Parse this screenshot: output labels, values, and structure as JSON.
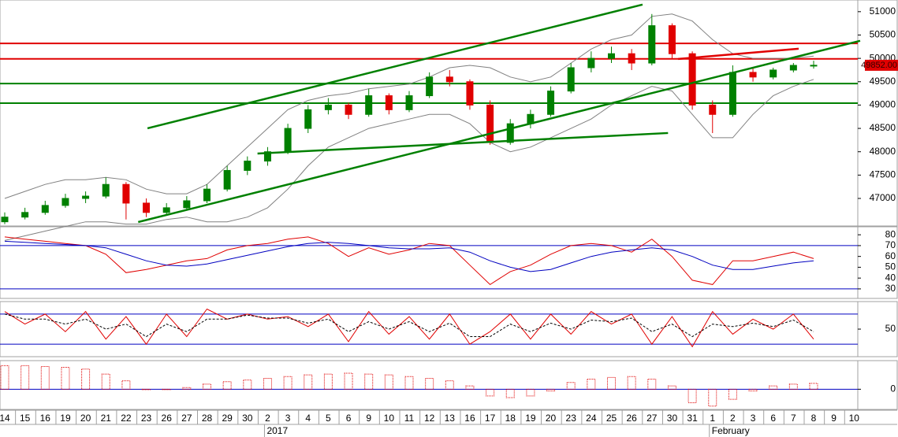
{
  "chart_data": {
    "type": "candlestick",
    "categories": [
      "14",
      "15",
      "16",
      "19",
      "20",
      "21",
      "22",
      "23",
      "26",
      "27",
      "28",
      "29",
      "30",
      "2",
      "3",
      "4",
      "5",
      "6",
      "9",
      "10",
      "11",
      "12",
      "13",
      "16",
      "17",
      "18",
      "19",
      "20",
      "23",
      "24",
      "25",
      "26",
      "27",
      "30",
      "31",
      "1",
      "2",
      "3",
      "6",
      "7",
      "8",
      "9",
      "10"
    ],
    "periods": [
      null,
      null,
      null,
      null,
      null,
      null,
      null,
      null,
      null,
      null,
      null,
      null,
      null,
      "2017",
      null,
      null,
      null,
      null,
      null,
      null,
      null,
      null,
      null,
      null,
      null,
      null,
      null,
      null,
      null,
      null,
      null,
      null,
      null,
      null,
      null,
      "February",
      null,
      null,
      null,
      null,
      null,
      null,
      null
    ],
    "ohlc": [
      [
        46500,
        46700,
        46450,
        46600
      ],
      [
        46600,
        46800,
        46550,
        46700
      ],
      [
        46700,
        46950,
        46650,
        46850
      ],
      [
        46850,
        47100,
        46800,
        47000
      ],
      [
        47000,
        47150,
        46900,
        47050
      ],
      [
        47050,
        47450,
        47000,
        47300
      ],
      [
        47300,
        47350,
        46550,
        46900
      ],
      [
        46900,
        47000,
        46600,
        46700
      ],
      [
        46700,
        46900,
        46650,
        46800
      ],
      [
        46800,
        47050,
        46750,
        46950
      ],
      [
        46950,
        47300,
        46900,
        47200
      ],
      [
        47200,
        47700,
        47150,
        47600
      ],
      [
        47600,
        47900,
        47500,
        47800
      ],
      [
        47800,
        48100,
        47700,
        48000
      ],
      [
        48000,
        48600,
        47950,
        48500
      ],
      [
        48500,
        49000,
        48400,
        48900
      ],
      [
        48900,
        49150,
        48800,
        49000
      ],
      [
        49000,
        49050,
        48700,
        48800
      ],
      [
        48800,
        49350,
        48750,
        49200
      ],
      [
        49200,
        49250,
        48800,
        48900
      ],
      [
        48900,
        49300,
        48850,
        49200
      ],
      [
        49200,
        49700,
        49150,
        49600
      ],
      [
        49600,
        49750,
        49400,
        49500
      ],
      [
        49500,
        49550,
        48900,
        49000
      ],
      [
        49000,
        49100,
        48150,
        48200
      ],
      [
        48200,
        48700,
        48150,
        48600
      ],
      [
        48600,
        48900,
        48500,
        48800
      ],
      [
        48800,
        49400,
        48750,
        49300
      ],
      [
        49300,
        49900,
        49250,
        49800
      ],
      [
        49800,
        50150,
        49700,
        50000
      ],
      [
        50000,
        50250,
        49900,
        50100
      ],
      [
        50100,
        50200,
        49750,
        49900
      ],
      [
        49900,
        50950,
        49850,
        50700
      ],
      [
        50700,
        50750,
        50000,
        50100
      ],
      [
        50100,
        50150,
        48900,
        49000
      ],
      [
        49000,
        49100,
        48400,
        48800
      ],
      [
        48800,
        49850,
        48750,
        49700
      ],
      [
        49700,
        49800,
        49500,
        49600
      ],
      [
        49600,
        49800,
        49550,
        49750
      ],
      [
        49750,
        49900,
        49700,
        49850
      ],
      [
        49850,
        49950,
        49780,
        49852
      ],
      null,
      null
    ],
    "up_color": "#008000",
    "down_color": "#e00000",
    "upper_band": [
      47000,
      47150,
      47300,
      47400,
      47400,
      47450,
      47400,
      47200,
      47100,
      47100,
      47300,
      47700,
      48100,
      48500,
      48900,
      49100,
      49200,
      49250,
      49350,
      49400,
      49450,
      49600,
      49800,
      49850,
      49800,
      49600,
      49500,
      49600,
      49900,
      50200,
      50400,
      50500,
      50900,
      50950,
      50800,
      50400,
      50100,
      50000,
      50000,
      50000,
      50050,
      null,
      null
    ],
    "lower_band": [
      46100,
      46200,
      46300,
      46400,
      46500,
      46500,
      46450,
      46450,
      46550,
      46600,
      46500,
      46500,
      46600,
      46800,
      47200,
      47700,
      48100,
      48300,
      48500,
      48600,
      48700,
      48800,
      48800,
      48600,
      48200,
      48000,
      48100,
      48300,
      48500,
      48700,
      49000,
      49200,
      49400,
      49300,
      48800,
      48300,
      48300,
      48800,
      49200,
      49400,
      49550,
      null,
      null
    ],
    "band_color": "#808080",
    "ylim": [
      46410,
      51250
    ],
    "yticks": [
      47000,
      47500,
      48000,
      48500,
      49000,
      49500,
      50000,
      50500,
      51000
    ],
    "hlines": [
      {
        "value": 50320,
        "color": "#e00000"
      },
      {
        "value": 49990,
        "color": "#e00000"
      },
      {
        "value": 49460,
        "color": "#008000"
      },
      {
        "value": 49040,
        "color": "#008000"
      }
    ],
    "trend_lines": [
      {
        "x": [
          6.6,
          42.3
        ],
        "y": [
          46494,
          50376
        ],
        "color": "#008000"
      },
      {
        "x": [
          7.06,
          31.54
        ],
        "y": [
          48502,
          51152
        ],
        "color": "#008000"
      },
      {
        "x": [
          12.5,
          32.8
        ],
        "y": [
          47962,
          48401
        ],
        "color": "#008000"
      },
      {
        "x": [
          33.3,
          39.26
        ],
        "y": [
          49987,
          50207
        ],
        "color": "#e00000"
      }
    ],
    "last_price": {
      "value": 49852,
      "label": "49852.00"
    },
    "panels": [
      {
        "type": "line",
        "ylim": [
          21.2,
          87.4
        ],
        "yticks": [
          30,
          40,
          50,
          60,
          70,
          80
        ],
        "hlines": [
          {
            "value": 70,
            "color": "#0000c0"
          },
          {
            "value": 30,
            "color": "#0000c0"
          }
        ],
        "series": [
          {
            "color": "#e00000",
            "values": [
              78,
              76,
              74,
              72,
              70,
              62,
              45,
              48,
              52,
              56,
              58,
              66,
              70,
              72,
              76,
              78,
              72,
              60,
              68,
              62,
              66,
              72,
              70,
              52,
              34,
              46,
              52,
              62,
              70,
              72,
              70,
              64,
              76,
              60,
              38,
              34,
              56,
              56,
              60,
              64,
              58,
              null,
              null
            ]
          },
          {
            "color": "#0000c0",
            "values": [
              74,
              73,
              72,
              71,
              70,
              68,
              62,
              56,
              52,
              51,
              53,
              57,
              61,
              65,
              69,
              72,
              73,
              72,
              70,
              68,
              67,
              67,
              68,
              64,
              56,
              50,
              46,
              48,
              54,
              60,
              64,
              66,
              68,
              66,
              60,
              52,
              48,
              48,
              51,
              54,
              56,
              null,
              null
            ]
          }
        ]
      },
      {
        "type": "line",
        "ylim": [
          -5,
          105
        ],
        "yticks": [
          50
        ],
        "hlines": [
          {
            "value": 80,
            "color": "#0000c0"
          },
          {
            "value": 20,
            "color": "#0000c0"
          }
        ],
        "series": [
          {
            "color": "#e00000",
            "values": [
              85,
              60,
              80,
              45,
              85,
              30,
              75,
              20,
              80,
              35,
              90,
              70,
              80,
              70,
              75,
              55,
              80,
              25,
              85,
              40,
              75,
              30,
              80,
              20,
              45,
              80,
              30,
              80,
              40,
              85,
              60,
              80,
              20,
              75,
              15,
              85,
              40,
              70,
              50,
              80,
              30,
              null,
              null
            ]
          },
          {
            "color": "#000000",
            "dashed": true,
            "values": [
              80,
              70,
              70,
              60,
              70,
              50,
              60,
              35,
              60,
              45,
              70,
              70,
              78,
              72,
              72,
              62,
              70,
              45,
              65,
              50,
              65,
              45,
              62,
              35,
              35,
              60,
              45,
              62,
              50,
              68,
              65,
              72,
              45,
              60,
              35,
              60,
              55,
              62,
              55,
              68,
              45,
              null,
              null
            ]
          }
        ]
      },
      {
        "type": "bar",
        "ylim": [
          -120,
          170
        ],
        "yticks": [
          0
        ],
        "hlines": [
          {
            "value": 0,
            "color": "#0000c0"
          }
        ],
        "series": [
          {
            "color": "#e00000",
            "values": [
              140,
              140,
              135,
              130,
              120,
              90,
              50,
              0,
              0,
              10,
              30,
              45,
              55,
              65,
              75,
              85,
              90,
              95,
              90,
              85,
              75,
              65,
              50,
              20,
              -40,
              -50,
              -40,
              -10,
              40,
              60,
              70,
              75,
              60,
              20,
              -80,
              -100,
              -60,
              -10,
              20,
              30,
              35,
              null,
              null
            ]
          }
        ]
      }
    ]
  }
}
